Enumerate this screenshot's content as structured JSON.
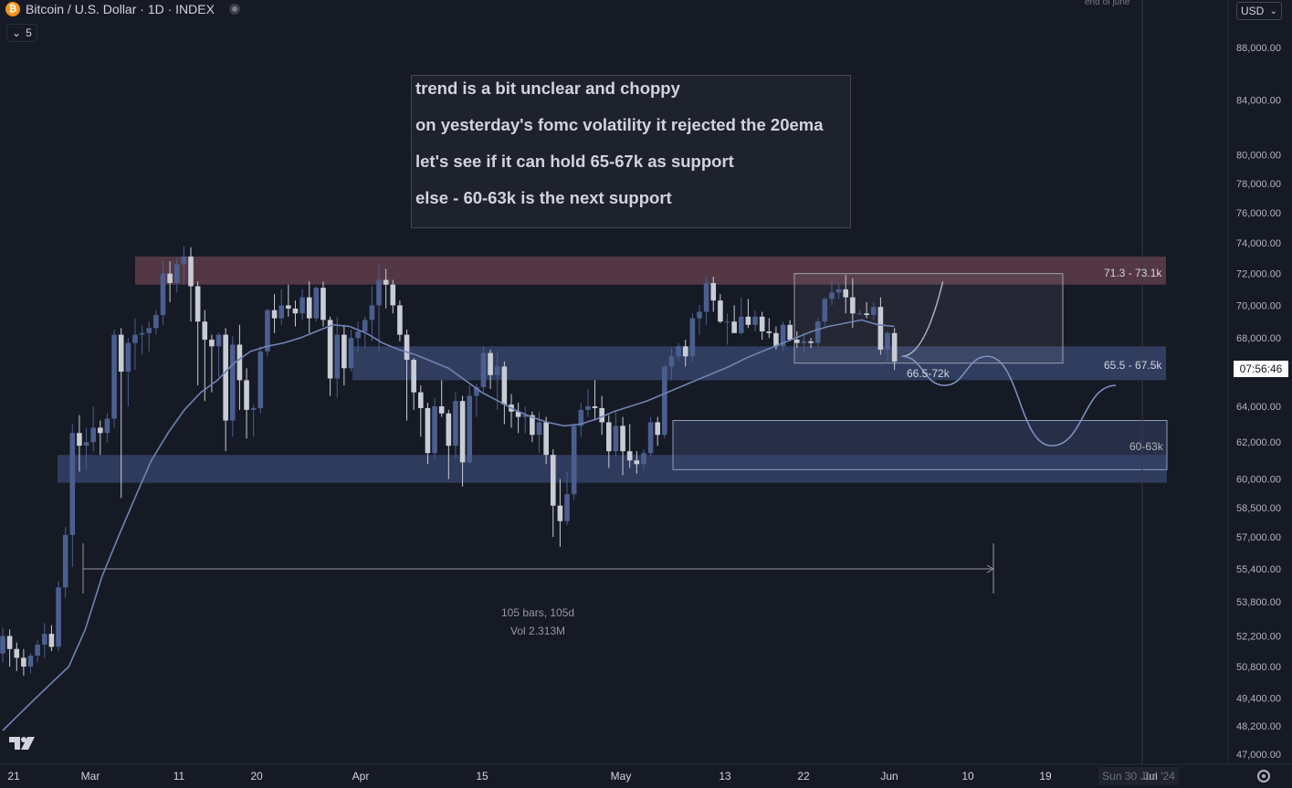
{
  "header": {
    "symbol": "Bitcoin / U.S. Dollar · 1D · INDEX",
    "collapse_count": "5",
    "currency": "USD"
  },
  "note": {
    "lines": [
      "trend is a bit unclear and choppy",
      "on yesterday's fomc volatility it rejected the 20ema",
      "let's see if it can hold 65-67k as support",
      "else - 60-63k is the next support"
    ]
  },
  "end_marker": "end of june",
  "zone_labels": {
    "resistance": "71.3 - 73.1k",
    "mid_support": "65.5 - 67.5k",
    "range_box": "66.5-72k",
    "lower_support": "60-63k"
  },
  "measure": {
    "bars": "105 bars, 105d",
    "volume": "Vol 2.313M"
  },
  "badges": {
    "countdown": "07:56:46",
    "date": "Sun 30 Jun '24"
  },
  "colors": {
    "background": "#161a25",
    "up_candle": "#4a5f8f",
    "down_candle": "#c8ccd4",
    "ema": "#6f84b5",
    "resistance_zone": "#5e3e4a",
    "support_zone": "#3b4a73",
    "projection": "#7f95c6"
  },
  "chart_data": {
    "type": "candlestick",
    "title": "Bitcoin / U.S. Dollar · 1D · INDEX",
    "price_axis": {
      "scale": "log",
      "range": [
        47000,
        90000
      ],
      "ticks": [
        "88,000.00",
        "84,000.00",
        "80,000.00",
        "78,000.00",
        "76,000.00",
        "74,000.00",
        "72,000.00",
        "70,000.00",
        "68,000.00",
        "66,000.00",
        "64,000.00",
        "62,000.00",
        "60,000.00",
        "58,500.00",
        "57,000.00",
        "55,400.00",
        "53,800.00",
        "52,200.00",
        "50,800.00",
        "49,400.00",
        "48,200.00",
        "47,000.00"
      ]
    },
    "time_axis": {
      "ticks": [
        "21",
        "Mar",
        "11",
        "20",
        "Apr",
        "15",
        "May",
        "13",
        "22",
        "Jun",
        "10",
        "19",
        "Jul"
      ]
    },
    "ohlc_daily_approx": [
      [
        51400,
        52600,
        51000,
        52200
      ],
      [
        52200,
        52500,
        50800,
        51600
      ],
      [
        51600,
        51900,
        50600,
        51200
      ],
      [
        51200,
        51600,
        50400,
        50800
      ],
      [
        50800,
        51400,
        50500,
        51300
      ],
      [
        51300,
        52000,
        51000,
        51800
      ],
      [
        51800,
        52800,
        51200,
        52300
      ],
      [
        52300,
        52700,
        51500,
        51700
      ],
      [
        51700,
        54800,
        51500,
        54500
      ],
      [
        54500,
        57500,
        54000,
        57100
      ],
      [
        57100,
        63000,
        55500,
        62500
      ],
      [
        62500,
        63500,
        60400,
        61800
      ],
      [
        61800,
        62800,
        60500,
        62000
      ],
      [
        62000,
        64000,
        61500,
        62800
      ],
      [
        62800,
        63200,
        61300,
        62500
      ],
      [
        62500,
        63600,
        62000,
        63300
      ],
      [
        63300,
        68500,
        62800,
        68200
      ],
      [
        68200,
        68600,
        59000,
        66000
      ],
      [
        66000,
        68000,
        64000,
        67700
      ],
      [
        67700,
        69200,
        66100,
        68200
      ],
      [
        68200,
        68800,
        67000,
        68300
      ],
      [
        68300,
        69000,
        67200,
        68600
      ],
      [
        68600,
        69700,
        68200,
        69400
      ],
      [
        69400,
        72800,
        68800,
        72000
      ],
      [
        72000,
        72800,
        70200,
        71400
      ],
      [
        71400,
        73000,
        70800,
        72600
      ],
      [
        72600,
        73800,
        71300,
        73100
      ],
      [
        73100,
        73700,
        69000,
        71200
      ],
      [
        71200,
        71500,
        65200,
        69000
      ],
      [
        69000,
        69700,
        64300,
        67900
      ],
      [
        67900,
        68200,
        64800,
        67500
      ],
      [
        67500,
        68300,
        65700,
        68200
      ],
      [
        68200,
        68600,
        61500,
        63200
      ],
      [
        63200,
        68100,
        62300,
        67600
      ],
      [
        67600,
        68800,
        63800,
        65500
      ],
      [
        65500,
        66200,
        62200,
        63800
      ],
      [
        63800,
        64100,
        62300,
        63900
      ],
      [
        63900,
        67500,
        63600,
        67200
      ],
      [
        67200,
        69800,
        66900,
        69700
      ],
      [
        69700,
        70700,
        68300,
        69200
      ],
      [
        69200,
        71000,
        68800,
        70000
      ],
      [
        70000,
        71300,
        69300,
        69800
      ],
      [
        69800,
        70300,
        68700,
        69500
      ],
      [
        69500,
        71000,
        69100,
        70500
      ],
      [
        70500,
        71500,
        68300,
        69200
      ],
      [
        69200,
        71200,
        69000,
        71100
      ],
      [
        71100,
        71500,
        68700,
        69100
      ],
      [
        69100,
        69300,
        64600,
        65600
      ],
      [
        65600,
        69300,
        64500,
        68200
      ],
      [
        68200,
        68800,
        65200,
        66200
      ],
      [
        66200,
        68500,
        66000,
        68000
      ],
      [
        68000,
        69000,
        67100,
        68400
      ],
      [
        68400,
        69300,
        67400,
        69100
      ],
      [
        69100,
        71200,
        67800,
        70000
      ],
      [
        70000,
        72600,
        67200,
        71600
      ],
      [
        71600,
        72300,
        69800,
        71300
      ],
      [
        71300,
        71600,
        69500,
        70000
      ],
      [
        70000,
        70300,
        67800,
        68200
      ],
      [
        68200,
        68500,
        63200,
        66700
      ],
      [
        66700,
        66800,
        63800,
        64800
      ],
      [
        64800,
        65200,
        62300,
        63900
      ],
      [
        63900,
        64200,
        60800,
        61400
      ],
      [
        61400,
        64500,
        61000,
        64000
      ],
      [
        64000,
        65500,
        63400,
        63600
      ],
      [
        63600,
        63800,
        60000,
        61800
      ],
      [
        61800,
        64800,
        61100,
        64300
      ],
      [
        64300,
        64600,
        59600,
        60900
      ],
      [
        60900,
        65200,
        60800,
        64600
      ],
      [
        64600,
        65300,
        63400,
        65100
      ],
      [
        65100,
        67500,
        64800,
        67100
      ],
      [
        67100,
        67300,
        65000,
        65800
      ],
      [
        65800,
        67200,
        63800,
        66300
      ],
      [
        66300,
        66600,
        63000,
        64100
      ],
      [
        64100,
        64700,
        62800,
        63700
      ],
      [
        63700,
        64200,
        62500,
        63400
      ],
      [
        63400,
        64000,
        62500,
        63500
      ],
      [
        63500,
        63700,
        62000,
        62400
      ],
      [
        62400,
        63700,
        61400,
        63100
      ],
      [
        63100,
        63400,
        60800,
        61300
      ],
      [
        61300,
        61600,
        57000,
        58600
      ],
      [
        58600,
        60000,
        56500,
        57800
      ],
      [
        57800,
        60400,
        57600,
        59200
      ],
      [
        59200,
        63000,
        58900,
        62900
      ],
      [
        62900,
        64200,
        62300,
        63800
      ],
      [
        63800,
        65000,
        63400,
        64000
      ],
      [
        64000,
        65500,
        63200,
        63900
      ],
      [
        63900,
        64600,
        62400,
        63100
      ],
      [
        63100,
        63500,
        60600,
        61500
      ],
      [
        61500,
        63700,
        61200,
        62900
      ],
      [
        62900,
        63400,
        60200,
        61500
      ],
      [
        61500,
        63000,
        60600,
        61000
      ],
      [
        61000,
        61500,
        60300,
        60800
      ],
      [
        60800,
        61600,
        60500,
        61400
      ],
      [
        61400,
        63400,
        61200,
        63100
      ],
      [
        63100,
        63400,
        61800,
        62400
      ],
      [
        62400,
        66400,
        62200,
        66300
      ],
      [
        66300,
        67400,
        65500,
        66900
      ],
      [
        66900,
        67700,
        66600,
        67500
      ],
      [
        67500,
        67900,
        66300,
        66900
      ],
      [
        66900,
        69500,
        66600,
        69200
      ],
      [
        69200,
        70000,
        68200,
        69600
      ],
      [
        69600,
        71800,
        68800,
        71400
      ],
      [
        71400,
        71800,
        69600,
        70300
      ],
      [
        70300,
        70700,
        68900,
        69000
      ],
      [
        69000,
        69500,
        67600,
        69000
      ],
      [
        69000,
        70000,
        68300,
        68300
      ],
      [
        68300,
        70500,
        68200,
        69300
      ],
      [
        69300,
        70400,
        68600,
        68800
      ],
      [
        68800,
        69700,
        68400,
        69300
      ],
      [
        69300,
        69600,
        67900,
        68400
      ],
      [
        68400,
        69200,
        68000,
        68300
      ],
      [
        68300,
        68700,
        67300,
        67500
      ],
      [
        67500,
        69000,
        67200,
        68800
      ],
      [
        68800,
        69100,
        67800,
        67900
      ],
      [
        67900,
        68400,
        67400,
        67700
      ],
      [
        67700,
        68300,
        67100,
        67800
      ],
      [
        67800,
        68000,
        67400,
        67700
      ],
      [
        67700,
        69200,
        67500,
        69000
      ],
      [
        69000,
        70500,
        68700,
        70400
      ],
      [
        70400,
        71600,
        70000,
        70800
      ],
      [
        70800,
        71400,
        70400,
        71000
      ],
      [
        71000,
        71900,
        69500,
        70500
      ],
      [
        70500,
        71700,
        68600,
        69500
      ],
      [
        69500,
        69700,
        69400,
        69500
      ],
      [
        69500,
        70200,
        69200,
        69400
      ],
      [
        69400,
        70200,
        69100,
        69900
      ],
      [
        69900,
        70500,
        67000,
        67300
      ],
      [
        67300,
        68400,
        66500,
        68300
      ],
      [
        68300,
        68600,
        66100,
        66600
      ]
    ],
    "ema_20": {
      "label": "20ema",
      "values_approx": [
        48000,
        48700,
        49400,
        50100,
        50800,
        52500,
        55000,
        57000,
        59000,
        61000,
        62500,
        63800,
        64800,
        65500,
        66500,
        67200,
        67500,
        67700,
        68000,
        68400,
        68800,
        68700,
        68300,
        67700,
        67300,
        67000,
        66600,
        66200,
        65500,
        64800,
        64300,
        63800,
        63400,
        63100,
        62900,
        63000,
        63300,
        63700,
        64000,
        64300,
        64700,
        65100,
        65500,
        65900,
        66300,
        66800,
        67200,
        67600,
        68000,
        68400,
        68700,
        68900,
        69100,
        68800,
        68700
      ]
    },
    "zones": [
      {
        "name": "71.3 - 73.1k",
        "low": 71300,
        "high": 73100
      },
      {
        "name": "65.5 - 67.5k",
        "low": 65500,
        "high": 67500
      },
      {
        "name": "66.5-72k",
        "low": 66500,
        "high": 72000
      },
      {
        "name": "60-63k",
        "low": 60500,
        "high": 63200
      },
      {
        "low": 59800,
        "high": 61300
      }
    ],
    "projection_path": [
      {
        "label": "up",
        "points": [
          [
            66900,
            0
          ],
          [
            71500,
            1
          ]
        ]
      },
      {
        "label": "down",
        "points": [
          [
            66900,
            0
          ],
          [
            65200,
            0.2
          ],
          [
            66900,
            0.4
          ],
          [
            61800,
            0.7
          ],
          [
            65200,
            1
          ]
        ]
      }
    ]
  }
}
